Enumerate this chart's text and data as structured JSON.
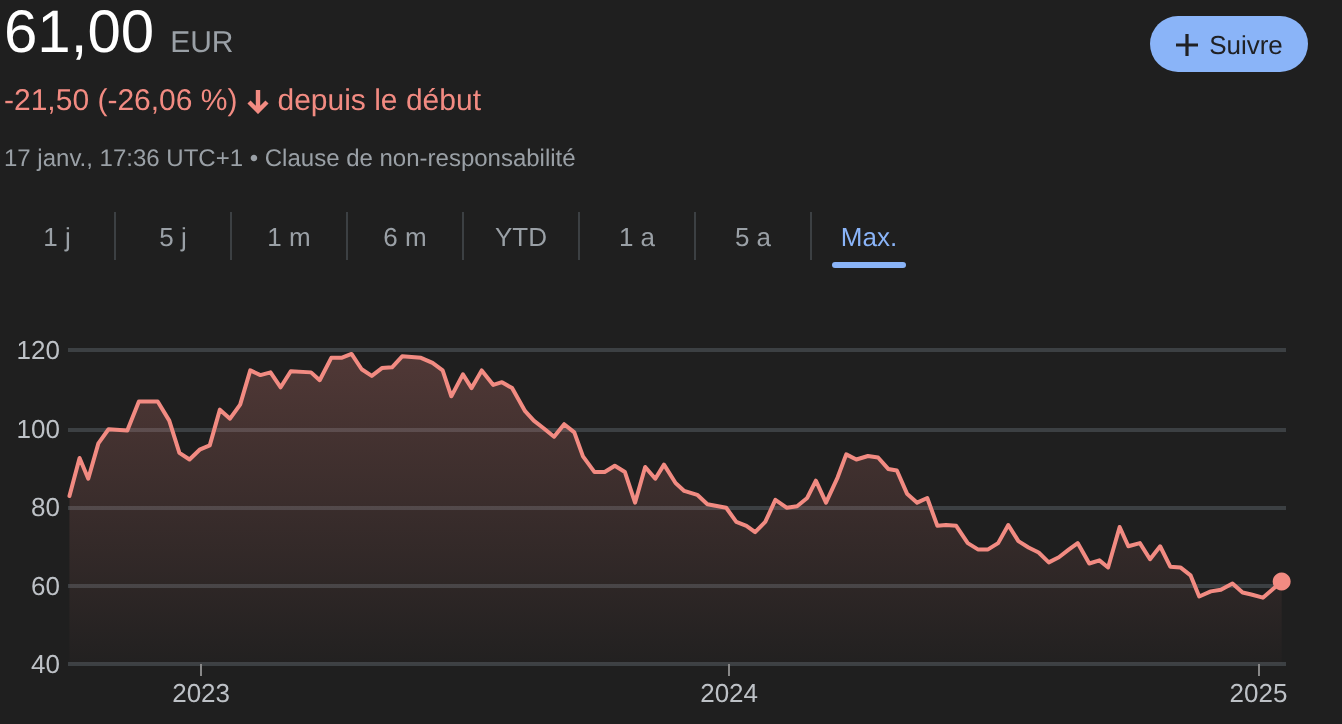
{
  "chart_data": {
    "type": "area",
    "title": "61,00",
    "subtitle": "-21,50 (-26,06 %)",
    "annotations": [
      "EUR",
      "depuis le début",
      "17 janv., 17:36 UTC+1 • Clause de non-responsabilité",
      "Suivre",
      "1 j",
      "5 j",
      "1 m",
      "6 m",
      "YTD",
      "1 a",
      "5 a",
      "Max."
    ],
    "x": [
      "2022-10-02",
      "2022-10-09",
      "2022-10-15",
      "2022-10-22",
      "2022-10-29",
      "2022-11-11",
      "2022-11-19",
      "2022-12-02",
      "2022-12-10",
      "2022-12-17",
      "2022-12-24",
      "2022-12-31",
      "2023-01-07",
      "2023-01-14",
      "2023-01-21",
      "2023-01-28",
      "2023-02-04",
      "2023-02-11",
      "2023-02-18",
      "2023-02-25",
      "2023-03-04",
      "2023-03-18",
      "2023-03-24",
      "2023-04-01",
      "2023-04-08",
      "2023-04-15",
      "2023-04-22",
      "2023-04-29",
      "2023-05-06",
      "2023-05-13",
      "2023-05-20",
      "2023-06-02",
      "2023-06-10",
      "2023-06-17",
      "2023-06-23",
      "2023-07-01",
      "2023-07-07",
      "2023-07-14",
      "2023-07-22",
      "2023-07-28",
      "2023-08-04",
      "2023-08-13",
      "2023-08-19",
      "2023-08-26",
      "2023-09-02",
      "2023-09-09",
      "2023-09-16",
      "2023-09-22",
      "2023-09-30",
      "2023-10-07",
      "2023-10-14",
      "2023-10-21",
      "2023-10-28",
      "2023-11-04",
      "2023-11-11",
      "2023-11-17",
      "2023-11-25",
      "2023-12-01",
      "2023-12-10",
      "2023-12-17",
      "2023-12-30",
      "2024-01-06",
      "2024-01-13",
      "2024-01-19",
      "2024-01-26",
      "2024-02-02",
      "2024-02-10",
      "2024-02-17",
      "2024-02-24",
      "2024-03-01",
      "2024-03-08",
      "2024-03-16",
      "2024-03-22",
      "2024-03-29",
      "2024-04-06",
      "2024-04-13",
      "2024-04-20",
      "2024-04-26",
      "2024-05-03",
      "2024-05-10",
      "2024-05-17",
      "2024-05-24",
      "2024-05-30",
      "2024-06-06",
      "2024-06-14",
      "2024-06-21",
      "2024-06-28",
      "2024-07-05",
      "2024-07-12",
      "2024-07-19",
      "2024-07-26",
      "2024-08-02",
      "2024-08-09",
      "2024-08-16",
      "2024-08-23",
      "2024-08-29",
      "2024-09-06",
      "2024-09-13",
      "2024-09-19",
      "2024-09-27",
      "2024-10-03",
      "2024-10-11",
      "2024-10-18",
      "2024-10-25",
      "2024-11-01",
      "2024-11-08",
      "2024-11-15",
      "2024-11-21",
      "2024-11-29",
      "2024-12-06",
      "2024-12-14",
      "2024-12-21",
      "2024-12-27",
      "2025-01-04",
      "2025-01-17"
    ],
    "series": [
      {
        "color": "#f28b82",
        "values": [
          82.8,
          92.5,
          87.2,
          96.2,
          99.8,
          99.5,
          106.9,
          106.9,
          102,
          93.8,
          92.1,
          94.6,
          95.7,
          104.8,
          102.5,
          106.1,
          114.8,
          113.6,
          114.3,
          110.5,
          114.6,
          114.3,
          112.3,
          118,
          118,
          119,
          115.1,
          113.4,
          115.4,
          115.6,
          118.4,
          118,
          116.7,
          114.8,
          108.2,
          113.8,
          110.3,
          114.8,
          111.1,
          111.8,
          110.3,
          104.4,
          102,
          100,
          97.9,
          101.1,
          99,
          92.9,
          88.9,
          88.9,
          90.5,
          88.9,
          81.1,
          90.2,
          87.2,
          90.8,
          86.1,
          84.1,
          83.1,
          80.7,
          79.8,
          76.2,
          75.2,
          73.6,
          76.2,
          81.8,
          79.8,
          80.2,
          82.3,
          86.7,
          81.1,
          87.5,
          93.4,
          92.1,
          93,
          92.6,
          89.7,
          89.3,
          83.4,
          81.1,
          82.3,
          75.2,
          75.4,
          75.2,
          70.8,
          69.2,
          69.2,
          70.8,
          75.4,
          71.3,
          69.7,
          68.4,
          65.9,
          67.2,
          69.2,
          70.8,
          65.6,
          66.4,
          64.6,
          74.9,
          70,
          70.8,
          66.7,
          70,
          64.8,
          64.6,
          62.6,
          57.2,
          58.5,
          58.9,
          60.5,
          58.2,
          57.7,
          56.9,
          61
        ]
      }
    ],
    "xlim": [
      "2022-10-01",
      "2025-01-20"
    ],
    "xticks": [
      "2023",
      "2024",
      "2025"
    ],
    "ylim": [
      40,
      120
    ],
    "yticks": [
      40,
      60,
      80,
      100,
      120
    ],
    "grid": "y",
    "marker": "none",
    "line_style": "solid"
  }
}
